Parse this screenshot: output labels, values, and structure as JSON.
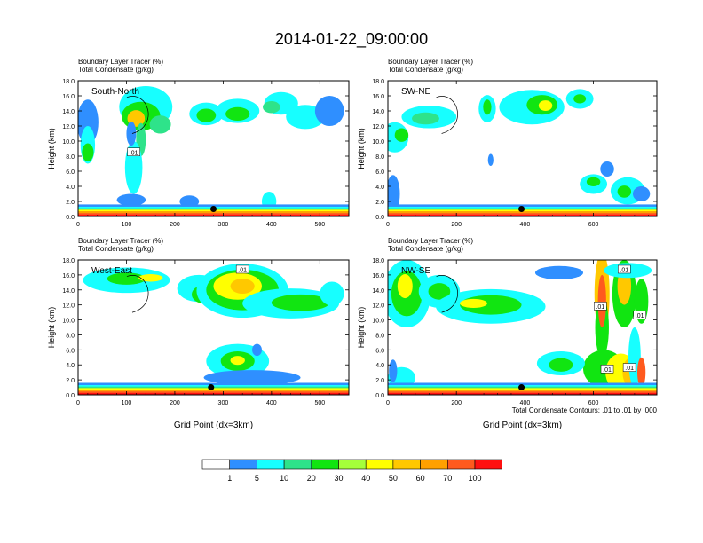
{
  "figure": {
    "title": "2014-01-22_09:00:00",
    "footnote": "Total Condensate Contours: .01 to .01 by .000"
  },
  "colorbar": {
    "colors": [
      "#ffffff",
      "#2f8fff",
      "#17ffff",
      "#2ee38a",
      "#11e511",
      "#a5ff3a",
      "#ffff00",
      "#ffc800",
      "#ffa000",
      "#ff5a1e",
      "#ff1010"
    ],
    "labels": [
      "1",
      "5",
      "10",
      "20",
      "30",
      "40",
      "50",
      "60",
      "70",
      "100"
    ]
  },
  "chart_data": [
    {
      "type": "heatmap",
      "label": "South-North",
      "title_lines": [
        "Boundary Layer Tracer   (%)",
        "Total Condensate   (g/kg)"
      ],
      "xlabel": "",
      "ylabel": "Height (km)",
      "xlim": [
        0,
        560
      ],
      "ylim": [
        0,
        18
      ],
      "xticks": [
        0,
        100,
        200,
        300,
        400,
        500
      ],
      "yticks": [
        0,
        2,
        4,
        6,
        8,
        10,
        12,
        14,
        16,
        18
      ],
      "ytick_labels": [
        "0.0",
        "2.0",
        "4.0",
        "6.0",
        "8.0",
        "10.0",
        "12.0",
        "14.0",
        "16.0",
        "18.0"
      ],
      "contour_labels": [
        {
          "text": ".01",
          "x": 115,
          "y": 8.5
        }
      ],
      "marker": {
        "x": 280,
        "y": 1.0
      }
    },
    {
      "type": "heatmap",
      "label": "SW-NE",
      "title_lines": [
        "Boundary Layer Tracer   (%)",
        "Total Condensate   (g/kg)"
      ],
      "xlabel": "",
      "ylabel": "Height (km)",
      "xlim": [
        0,
        785
      ],
      "ylim": [
        0,
        18
      ],
      "xticks": [
        0,
        200,
        400,
        600
      ],
      "yticks": [
        0,
        2,
        4,
        6,
        8,
        10,
        12,
        14,
        16,
        18
      ],
      "ytick_labels": [
        "0.0",
        "2.0",
        "4.0",
        "6.0",
        "8.0",
        "10.0",
        "12.0",
        "14.0",
        "16.0",
        "18.0"
      ],
      "contour_labels": [],
      "marker": {
        "x": 390,
        "y": 1.0
      }
    },
    {
      "type": "heatmap",
      "label": "West-East",
      "title_lines": [
        "Boundary Layer Tracer   (%)",
        "Total Condensate   (g/kg)"
      ],
      "xlabel": "Grid Point (dx=3km)",
      "ylabel": "Height (km)",
      "xlim": [
        0,
        560
      ],
      "ylim": [
        0,
        18
      ],
      "xticks": [
        0,
        100,
        200,
        300,
        400,
        500
      ],
      "yticks": [
        0,
        2,
        4,
        6,
        8,
        10,
        12,
        14,
        16,
        18
      ],
      "ytick_labels": [
        "0.0",
        "2.0",
        "4.0",
        "6.0",
        "8.0",
        "10.0",
        "12.0",
        "14.0",
        "16.0",
        "18.0"
      ],
      "contour_labels": [
        {
          "text": ".01",
          "x": 340,
          "y": 16.7
        }
      ],
      "marker": {
        "x": 275,
        "y": 1.0
      }
    },
    {
      "type": "heatmap",
      "label": "NW-SE",
      "title_lines": [
        "Boundary Layer Tracer   (%)",
        "Total Condensate   (g/kg)"
      ],
      "xlabel": "Grid Point (dx=3km)",
      "ylabel": "Height (km)",
      "xlim": [
        0,
        785
      ],
      "ylim": [
        0,
        18
      ],
      "xticks": [
        0,
        200,
        400,
        600
      ],
      "yticks": [
        0,
        2,
        4,
        6,
        8,
        10,
        12,
        14,
        16,
        18
      ],
      "ytick_labels": [
        "0.0",
        "2.0",
        "4.0",
        "6.0",
        "8.0",
        "10.0",
        "12.0",
        "14.0",
        "16.0",
        "18.0"
      ],
      "contour_labels": [
        {
          "text": ".01",
          "x": 690,
          "y": 16.7
        },
        {
          "text": ".01",
          "x": 620,
          "y": 11.8
        },
        {
          "text": ".01",
          "x": 735,
          "y": 10.6
        },
        {
          "text": ".01",
          "x": 640,
          "y": 3.4
        },
        {
          "text": ".01",
          "x": 705,
          "y": 3.6
        }
      ],
      "marker": {
        "x": 390,
        "y": 1.0
      }
    }
  ]
}
